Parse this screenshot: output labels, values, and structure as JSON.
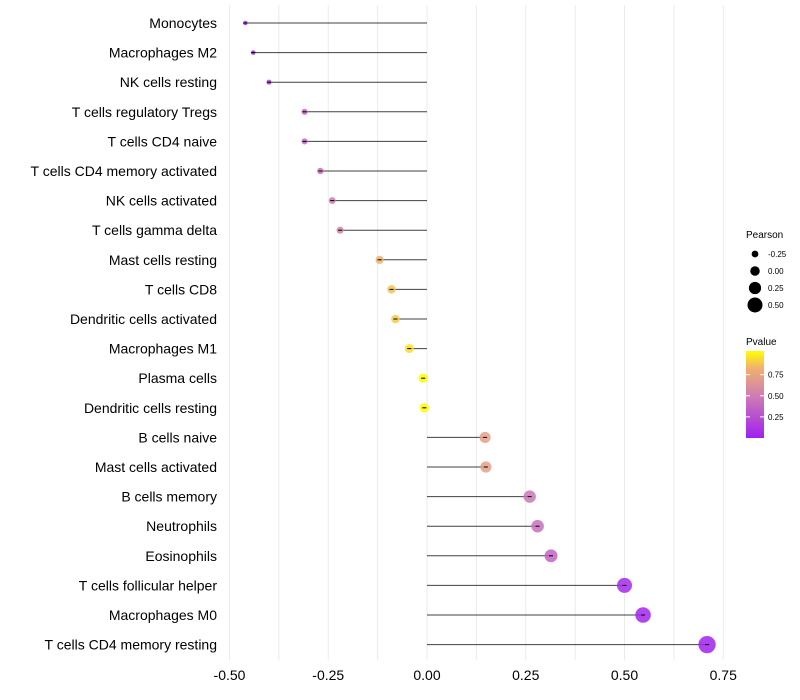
{
  "chart_data": {
    "type": "lollipop",
    "title": "",
    "xlabel": "",
    "ylabel": "",
    "xlim": [
      -0.52,
      0.78
    ],
    "xticks": [
      -0.5,
      -0.25,
      0.0,
      0.25,
      0.5,
      0.75
    ],
    "xtick_labels": [
      "-0.50",
      "-0.25",
      "0.00",
      "0.25",
      "0.50",
      "0.75"
    ],
    "grid": true,
    "categories": [
      "Monocytes",
      "Macrophages M2",
      "NK cells resting",
      "T cells regulatory  Tregs ",
      "T cells CD4 naive",
      "T cells CD4 memory activated",
      "NK cells activated",
      "T cells gamma delta",
      "Mast cells resting",
      "T cells CD8",
      "Dendritic cells activated",
      "Macrophages M1",
      "Plasma cells",
      "Dendritic cells resting",
      "B cells naive",
      "Mast cells activated",
      "B cells memory",
      "Neutrophils",
      "Eosinophils",
      "T cells follicular helper",
      "Macrophages M0",
      "T cells CD4 memory resting"
    ],
    "pearson": [
      -0.46,
      -0.44,
      -0.4,
      -0.31,
      -0.31,
      -0.27,
      -0.24,
      -0.22,
      -0.12,
      -0.09,
      -0.08,
      -0.045,
      -0.01,
      -0.007,
      0.147,
      0.149,
      0.26,
      0.28,
      0.314,
      0.5,
      0.547,
      0.709
    ],
    "pvalue": [
      0.05,
      0.08,
      0.15,
      0.35,
      0.35,
      0.42,
      0.48,
      0.52,
      0.8,
      0.85,
      0.87,
      0.92,
      0.99,
      0.99,
      0.7,
      0.7,
      0.45,
      0.42,
      0.35,
      0.05,
      0.03,
      0.01
    ],
    "legend": {
      "size_title": "Pearson",
      "size_breaks": [
        -0.25,
        0.0,
        0.25,
        0.5
      ],
      "size_labels": [
        "-0.25",
        "0.00",
        "0.25",
        "0.50"
      ],
      "color_title": "Pvalue",
      "color_breaks": [
        0.25,
        0.5,
        0.75
      ],
      "color_labels": [
        "0.25",
        "0.50",
        "0.75"
      ],
      "color_low": "#A020F0",
      "color_mid": "#D080B0",
      "color_high": "#FFFF00",
      "placement": "right"
    }
  }
}
